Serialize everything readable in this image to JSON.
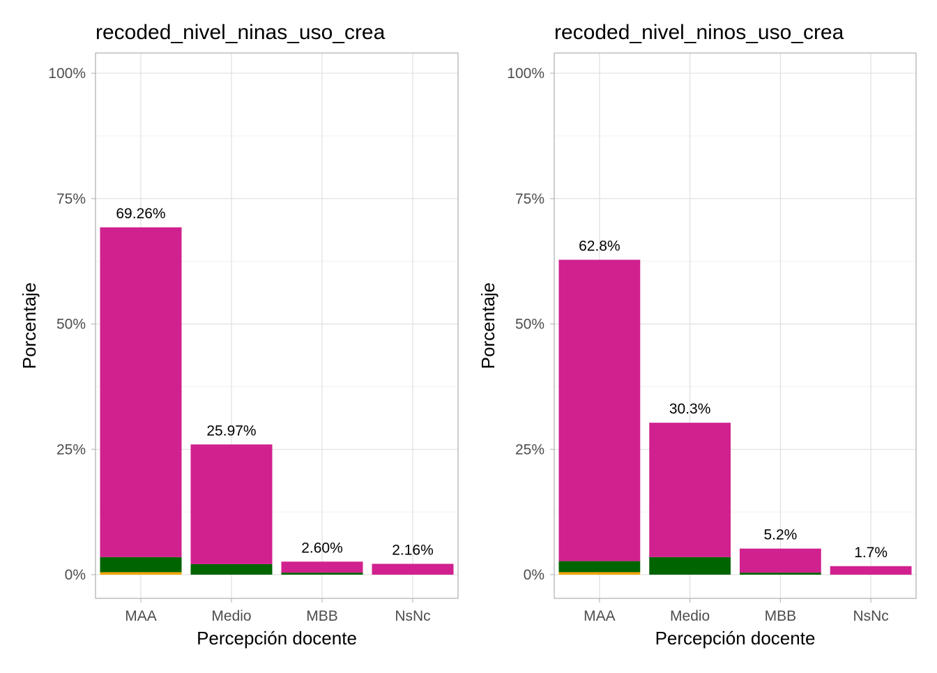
{
  "colors": {
    "top": "#D0218E",
    "middle": "#006400",
    "bottom": "#F0A500",
    "grid": "#dcdcdc",
    "frame": "#b3b3b3",
    "tick_text": "#4d4d4d"
  },
  "chart_data": [
    {
      "type": "bar",
      "stacked": true,
      "title": "recoded_nivel_ninas_uso_crea",
      "xlabel": "Percepción docente",
      "ylabel": "Porcentaje",
      "categories": [
        "MAA",
        "Medio",
        "MBB",
        "NsNc"
      ],
      "yticks": [
        "0%",
        "25%",
        "50%",
        "75%",
        "100%"
      ],
      "ylim": [
        0,
        100
      ],
      "grid": true,
      "series": [
        {
          "values": [
            0.5,
            0.0,
            0.0,
            0.0
          ]
        },
        {
          "values": [
            3.0,
            2.1,
            0.4,
            0.0
          ]
        },
        {
          "values": [
            65.76,
            23.87,
            2.2,
            2.16
          ]
        }
      ],
      "totals": [
        69.26,
        25.97,
        2.6,
        2.16
      ],
      "data_labels": [
        "69.26%",
        "25.97%",
        "2.60%",
        "2.16%"
      ]
    },
    {
      "type": "bar",
      "stacked": true,
      "title": "recoded_nivel_ninos_uso_crea",
      "xlabel": "Percepción docente",
      "ylabel": "Porcentaje",
      "categories": [
        "MAA",
        "Medio",
        "MBB",
        "NsNc"
      ],
      "yticks": [
        "0%",
        "25%",
        "50%",
        "75%",
        "100%"
      ],
      "ylim": [
        0,
        100
      ],
      "grid": true,
      "series": [
        {
          "values": [
            0.5,
            0.0,
            0.0,
            0.0
          ]
        },
        {
          "values": [
            2.2,
            3.5,
            0.4,
            0.0
          ]
        },
        {
          "values": [
            60.1,
            26.8,
            4.8,
            1.7
          ]
        }
      ],
      "totals": [
        62.8,
        30.3,
        5.2,
        1.7
      ],
      "data_labels": [
        "62.8%",
        "30.3%",
        "5.2%",
        "1.7%"
      ]
    }
  ]
}
